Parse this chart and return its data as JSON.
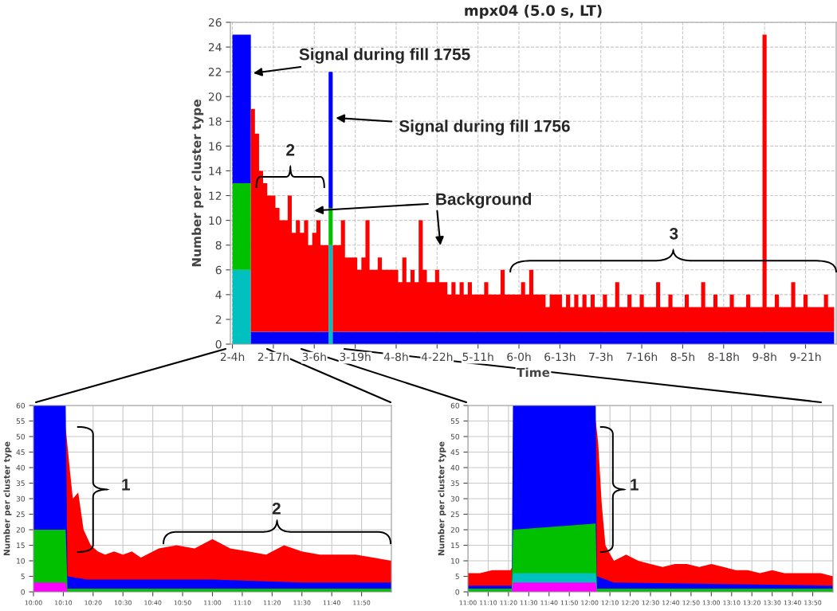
{
  "chart_data": [
    {
      "type": "area",
      "title": "mpx04 (5.0 s, LT)",
      "xlabel": "Time",
      "ylabel": "Number per cluster type",
      "ylim": [
        0,
        26
      ],
      "stacked": true,
      "categories": [
        "2-4h",
        null,
        null,
        null,
        null,
        null,
        null,
        null,
        null,
        null,
        "2-17h",
        null,
        null,
        null,
        null,
        null,
        null,
        null,
        null,
        null,
        "3-6h",
        null,
        null,
        null,
        null,
        null,
        null,
        null,
        null,
        null,
        "3-19h",
        null,
        null,
        null,
        null,
        null,
        null,
        null,
        null,
        null,
        "4-8h",
        null,
        null,
        null,
        null,
        null,
        null,
        null,
        null,
        null,
        "4-22h",
        null,
        null,
        null,
        null,
        null,
        null,
        null,
        null,
        null,
        "5-11h",
        null,
        null,
        null,
        null,
        null,
        null,
        null,
        null,
        null,
        "6-0h",
        null,
        null,
        null,
        null,
        null,
        null,
        null,
        null,
        null,
        "6-13h",
        null,
        null,
        null,
        null,
        null,
        null,
        null,
        null,
        null,
        "7-3h",
        null,
        null,
        null,
        null,
        null,
        null,
        null,
        null,
        null,
        "7-16h",
        null,
        null,
        null,
        null,
        null,
        null,
        null,
        null,
        null,
        "8-5h",
        null,
        null,
        null,
        null,
        null,
        null,
        null,
        null,
        null,
        "8-18h",
        null,
        null,
        null,
        null,
        null,
        null,
        null,
        null,
        null,
        "9-8h",
        null,
        null,
        null,
        null,
        null,
        null,
        null,
        null,
        null,
        "9-21h",
        null,
        null,
        null,
        null,
        null,
        null,
        null
      ],
      "yticks": [
        0,
        2,
        4,
        6,
        8,
        10,
        12,
        14,
        16,
        18,
        20,
        22,
        24,
        26
      ],
      "grid": true,
      "line_style": "dashed",
      "series": [
        {
          "color": "#00c0c0",
          "values": [
            6,
            6,
            6,
            6,
            6,
            0,
            0,
            0,
            0,
            0,
            0,
            0,
            0,
            0,
            0,
            0,
            0,
            0,
            0,
            0,
            0,
            0,
            0,
            0,
            8,
            0,
            0,
            0,
            0,
            0,
            0,
            0,
            0,
            0,
            0,
            0,
            0,
            0,
            0,
            0,
            0,
            0,
            0,
            0,
            0,
            0,
            0,
            0,
            0,
            0,
            0,
            0,
            0,
            0,
            0,
            0,
            0,
            0,
            0,
            0,
            0,
            0,
            0,
            0,
            0,
            0,
            0,
            0,
            0,
            0,
            0,
            0,
            0,
            0,
            0,
            0,
            0,
            0,
            0,
            0,
            0,
            0,
            0,
            0,
            0,
            0,
            0,
            0,
            0,
            0,
            0,
            0,
            0,
            0,
            0,
            0,
            0,
            0,
            0,
            0,
            0,
            0,
            0,
            0,
            0,
            0,
            0,
            0,
            0,
            0,
            0,
            0,
            0,
            0,
            0,
            0,
            0,
            0,
            0,
            0,
            0,
            0,
            0,
            0,
            0,
            0,
            0,
            0,
            0,
            0,
            0,
            0,
            0,
            0,
            0,
            0,
            0,
            0,
            0,
            0,
            0,
            0,
            0,
            0,
            0,
            0,
            0,
            0
          ]
        },
        {
          "color": "#00c000",
          "values": [
            7,
            7,
            7,
            7,
            7,
            0,
            0,
            0,
            0,
            0,
            0,
            0,
            0,
            0,
            0,
            0,
            0,
            0,
            0,
            0,
            0,
            0,
            0,
            0,
            3,
            0,
            0,
            0,
            0,
            0,
            0,
            0,
            0,
            0,
            0,
            0,
            0,
            0,
            0,
            0,
            0,
            0,
            0,
            0,
            0,
            0,
            0,
            0,
            0,
            0,
            0,
            0,
            0,
            0,
            0,
            0,
            0,
            0,
            0,
            0,
            0,
            0,
            0,
            0,
            0,
            0,
            0,
            0,
            0,
            0,
            0,
            0,
            0,
            0,
            0,
            0,
            0,
            0,
            0,
            0,
            0,
            0,
            0,
            0,
            0,
            0,
            0,
            0,
            0,
            0,
            0,
            0,
            0,
            0,
            0,
            0,
            0,
            0,
            0,
            0,
            0,
            0,
            0,
            0,
            0,
            0,
            0,
            0,
            0,
            0,
            0,
            0,
            0,
            0,
            0,
            0,
            0,
            0,
            0,
            0,
            0,
            0,
            0,
            0,
            0,
            0,
            0,
            0,
            0,
            0,
            0,
            0,
            0,
            0,
            0,
            0,
            0,
            0,
            0,
            0,
            0,
            0,
            0,
            0,
            0,
            0,
            0,
            0
          ]
        },
        {
          "color": "#0000ff",
          "values": [
            12,
            12,
            12,
            12,
            12,
            1,
            1,
            1,
            1,
            1,
            1,
            1,
            1,
            1,
            1,
            1,
            1,
            1,
            1,
            1,
            1,
            1,
            1,
            1,
            11,
            1,
            1,
            1,
            1,
            1,
            1,
            1,
            1,
            1,
            1,
            1,
            1,
            1,
            1,
            1,
            1,
            1,
            1,
            1,
            1,
            1,
            1,
            1,
            1,
            1,
            1,
            1,
            1,
            1,
            1,
            1,
            1,
            1,
            1,
            1,
            1,
            1,
            1,
            1,
            1,
            1,
            1,
            1,
            1,
            1,
            1,
            1,
            1,
            1,
            1,
            1,
            1,
            1,
            1,
            1,
            1,
            1,
            1,
            1,
            1,
            1,
            1,
            1,
            1,
            1,
            1,
            1,
            1,
            1,
            1,
            1,
            1,
            1,
            1,
            1,
            1,
            1,
            1,
            1,
            1,
            1,
            1,
            1,
            1,
            1,
            1,
            1,
            1,
            1,
            1,
            1,
            1,
            1,
            1,
            1,
            1,
            1,
            1,
            1,
            1,
            1,
            1,
            1,
            1,
            1,
            1,
            1,
            1,
            1,
            1,
            1,
            1,
            1,
            1,
            1,
            1,
            1,
            1,
            1,
            1,
            1,
            1,
            1
          ]
        },
        {
          "color": "#ff0000",
          "values": [
            0,
            0,
            0,
            0,
            0,
            18,
            16,
            13,
            12,
            11,
            11,
            10,
            9,
            9,
            11,
            8,
            9,
            8,
            9,
            7,
            8,
            9,
            7,
            7,
            0,
            7,
            7,
            9,
            6,
            6,
            6,
            5,
            6,
            9,
            5,
            5,
            6,
            5,
            5,
            5,
            5,
            4,
            6,
            4,
            5,
            4,
            9,
            5,
            4,
            4,
            5,
            4,
            4,
            3,
            4,
            3,
            4,
            3,
            4,
            3,
            3,
            3,
            4,
            3,
            3,
            3,
            5,
            3,
            3,
            3,
            3,
            4,
            3,
            5,
            3,
            3,
            3,
            2,
            3,
            3,
            3,
            2,
            3,
            2,
            3,
            2,
            3,
            2,
            3,
            2,
            2,
            3,
            2,
            2,
            4,
            2,
            2,
            3,
            2,
            2,
            3,
            2,
            2,
            2,
            4,
            2,
            2,
            3,
            2,
            2,
            2,
            3,
            2,
            2,
            2,
            4,
            2,
            2,
            3,
            2,
            2,
            2,
            3,
            2,
            2,
            2,
            3,
            2,
            2,
            2,
            24,
            2,
            2,
            3,
            2,
            2,
            2,
            4,
            2,
            2,
            3,
            2,
            2,
            2,
            2,
            3,
            2,
            2
          ]
        }
      ],
      "annotations": [
        "Signal during fill 1755",
        "Signal during fill 1756",
        "Background",
        "2",
        "3"
      ]
    },
    {
      "type": "area",
      "ylabel": "Number per cluster type",
      "xlim": [
        10,
        12
      ],
      "ylim": [
        0,
        60
      ],
      "xticks": [
        {
          "value": 10,
          "label": "10:00"
        },
        {
          "value": 10.1667,
          "label": "10:10"
        },
        {
          "value": 10.3333,
          "label": "10:20"
        },
        {
          "value": 10.5,
          "label": "10:30"
        },
        {
          "value": 10.6667,
          "label": "10:40"
        },
        {
          "value": 10.8333,
          "label": "10:50"
        },
        {
          "value": 11,
          "label": "11:00"
        },
        {
          "value": 11.1667,
          "label": "11:10"
        },
        {
          "value": 11.3333,
          "label": "11:20"
        },
        {
          "value": 11.5,
          "label": "11:30"
        },
        {
          "value": 11.6667,
          "label": "11:40"
        },
        {
          "value": 11.8333,
          "label": "11:50"
        }
      ],
      "yticks": [
        0,
        5,
        10,
        15,
        20,
        25,
        30,
        35,
        40,
        45,
        50,
        55,
        60
      ],
      "grid": true,
      "series": [
        {
          "color": "#ff0000",
          "x": [
            10.18,
            10.2,
            10.22,
            10.25,
            10.28,
            10.32,
            10.36,
            10.4,
            10.45,
            10.5,
            10.55,
            10.6,
            10.7,
            10.8,
            10.9,
            11,
            11.1,
            11.2,
            11.3,
            11.4,
            11.5,
            11.6,
            11.7,
            11.8,
            11.9,
            12
          ],
          "values": [
            53,
            41,
            30,
            32,
            20,
            15,
            13,
            12,
            13,
            12,
            13,
            11,
            14,
            15,
            14,
            17,
            14,
            13,
            12,
            15,
            13,
            12,
            12,
            12,
            11,
            10
          ]
        },
        {
          "color": "#0000ff",
          "x": [
            10,
            10.18,
            10.19,
            10.3,
            10.5,
            11,
            11.5,
            12
          ],
          "values": [
            60,
            60,
            5,
            4,
            4,
            4,
            3,
            3
          ]
        },
        {
          "color": "#00c000",
          "x": [
            10,
            10.18,
            10.19,
            12
          ],
          "values": [
            20,
            20,
            1,
            1
          ]
        },
        {
          "color": "#ff00ff",
          "x": [
            10,
            10.18,
            10.19,
            12
          ],
          "values": [
            3,
            3,
            0,
            0
          ]
        }
      ],
      "annotations": [
        "1",
        "2"
      ]
    },
    {
      "type": "area",
      "ylabel": "Number per cluster type",
      "xlim": [
        11,
        14
      ],
      "ylim": [
        0,
        60
      ],
      "xticks": [
        {
          "value": 11,
          "label": "11:00"
        },
        {
          "value": 11.1667,
          "label": "11:10"
        },
        {
          "value": 11.3333,
          "label": "11:20"
        },
        {
          "value": 11.5,
          "label": "11:30"
        },
        {
          "value": 11.6667,
          "label": "11:40"
        },
        {
          "value": 11.8333,
          "label": "11:50"
        },
        {
          "value": 12,
          "label": "12:00"
        },
        {
          "value": 12.1667,
          "label": "12:10"
        },
        {
          "value": 12.3333,
          "label": "12:20"
        },
        {
          "value": 12.5,
          "label": "12:30"
        },
        {
          "value": 12.6667,
          "label": "12:40"
        },
        {
          "value": 12.8333,
          "label": "12:50"
        },
        {
          "value": 13,
          "label": "13:00"
        },
        {
          "value": 13.1667,
          "label": "13:10"
        },
        {
          "value": 13.3333,
          "label": "13:20"
        },
        {
          "value": 13.5,
          "label": "13:30"
        },
        {
          "value": 13.6667,
          "label": "13:40"
        },
        {
          "value": 13.8333,
          "label": "13:50"
        }
      ],
      "yticks": [
        0,
        5,
        10,
        15,
        20,
        25,
        30,
        35,
        40,
        45,
        50,
        55,
        60
      ],
      "grid": true,
      "series": [
        {
          "color": "#ff0000",
          "x": [
            11,
            11.1,
            11.2,
            11.35,
            12.05,
            12.07,
            12.1,
            12.13,
            12.17,
            12.2,
            12.3,
            12.4,
            12.5,
            12.6,
            12.7,
            12.8,
            12.9,
            13,
            13.1,
            13.2,
            13.3,
            13.4,
            13.5,
            13.6,
            13.7,
            13.8,
            13.9,
            14
          ],
          "values": [
            6,
            6,
            7,
            7,
            55,
            48,
            28,
            15,
            12,
            10,
            12,
            10,
            9,
            8,
            9,
            9,
            8,
            9,
            8,
            7,
            7,
            6,
            7,
            6,
            6,
            6,
            6,
            5
          ]
        },
        {
          "color": "#0000ff",
          "x": [
            11,
            11.36,
            11.37,
            12.05,
            12.06,
            12.2,
            14
          ],
          "values": [
            2,
            2,
            60,
            60,
            5,
            3,
            2
          ]
        },
        {
          "color": "#00c000",
          "x": [
            11,
            11.36,
            11.37,
            12.05,
            12.06,
            14
          ],
          "values": [
            1,
            1,
            20,
            22,
            1,
            1
          ]
        },
        {
          "color": "#00c0c0",
          "x": [
            11,
            11.36,
            11.37,
            12.05,
            12.06,
            14
          ],
          "values": [
            0,
            0,
            6,
            6,
            0,
            0
          ]
        },
        {
          "color": "#ff00ff",
          "x": [
            11,
            11.36,
            11.37,
            12.05,
            12.06,
            14
          ],
          "values": [
            0,
            0,
            3,
            3,
            0,
            0
          ]
        }
      ],
      "annotations": [
        "1"
      ]
    }
  ]
}
